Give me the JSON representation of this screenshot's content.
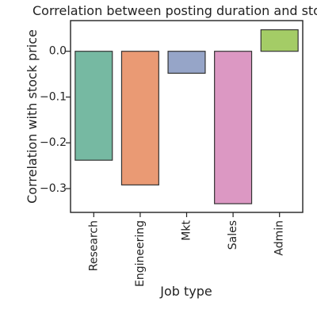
{
  "chart_data": {
    "type": "bar",
    "title": "Correlation between posting duration and stock price",
    "xlabel": "Job type",
    "ylabel": "Correlation with stock price",
    "categories": [
      "Research",
      "Engineering",
      "Mkt",
      "Sales",
      "Admin"
    ],
    "values": [
      -0.238,
      -0.292,
      -0.048,
      -0.333,
      0.047
    ],
    "colors": [
      "#76b9a2",
      "#ea9a74",
      "#96a5c8",
      "#dc98c3",
      "#a4cc66"
    ],
    "ylim": [
      -0.352,
      0.067
    ],
    "yticks": [
      0.0,
      -0.1,
      -0.2,
      -0.3
    ],
    "ytick_labels": [
      "0.0",
      "−0.1",
      "−0.2",
      "−0.3"
    ],
    "grid": false
  }
}
